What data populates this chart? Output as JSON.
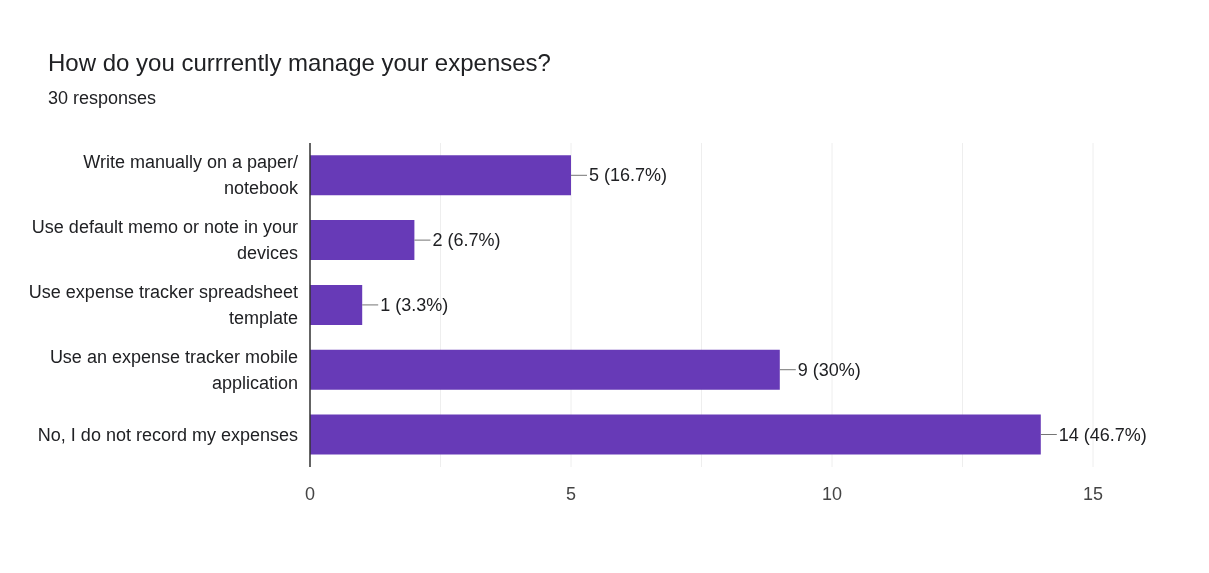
{
  "chart_data": {
    "type": "bar",
    "orientation": "horizontal",
    "title": "How do you currrently manage your expenses?",
    "subtitle": "30 responses",
    "categories": [
      "Write manually on a paper/ notebook",
      "Use default memo or note in your devices",
      "Use expense tracker spreadsheet template",
      "Use an expense tracker mobile application",
      "No, I do not record my expenses"
    ],
    "values": [
      5,
      2,
      1,
      9,
      14
    ],
    "color": "#673ab7",
    "value_labels": [
      "5 (16.7%)",
      "2 (6.7%)",
      "1 (3.3%)",
      "9 (30%)",
      "14 (46.7%)"
    ],
    "xlim": [
      0,
      15
    ],
    "xticks": [
      0,
      {
        "value": 2.5,
        "label": null
      },
      5,
      {
        "value": 7.5,
        "label": null
      },
      10,
      {
        "value": 12.5,
        "label": null
      },
      15
    ],
    "grid": "x",
    "legend": false
  }
}
